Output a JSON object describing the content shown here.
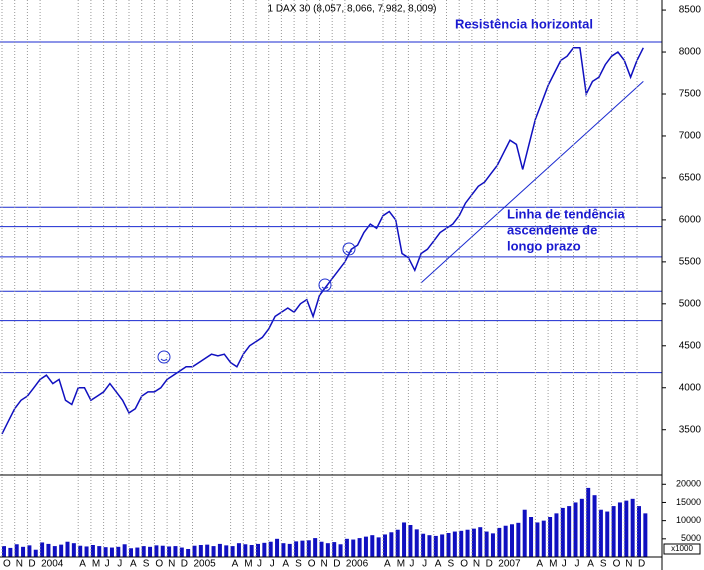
{
  "chart_data": {
    "type": "line",
    "title": "1 DAX 30 (8,057, 8,066, 7,982, 8,009)",
    "annotations": [
      "Resistência horizontal",
      "Linha de tendência",
      "ascendente de",
      "longo prazo"
    ],
    "categories": [
      "O",
      null,
      "N",
      null,
      "D",
      null,
      "2004",
      null,
      null,
      null,
      null,
      null,
      "A",
      null,
      "M",
      null,
      "J",
      null,
      "J",
      null,
      "A",
      null,
      "S",
      null,
      "O",
      null,
      "N",
      null,
      "D",
      null,
      "2005",
      null,
      null,
      null,
      null,
      null,
      "A",
      null,
      "M",
      null,
      "J",
      null,
      "J",
      null,
      "A",
      null,
      "S",
      null,
      "O",
      null,
      "N",
      null,
      "D",
      null,
      "2006",
      null,
      null,
      null,
      null,
      null,
      "A",
      null,
      "M",
      null,
      "J",
      null,
      "J",
      null,
      "A",
      null,
      "S",
      null,
      "O",
      null,
      "N",
      null,
      "D",
      null,
      "2007",
      null,
      null,
      null,
      null,
      null,
      "A",
      null,
      "M",
      null,
      "J",
      null,
      "J",
      null,
      "A",
      null,
      "S",
      null,
      "O",
      null,
      "N",
      null,
      "D",
      null
    ],
    "series": [
      {
        "color": "#1010c0",
        "values": [
          3450,
          3600,
          3750,
          3850,
          3900,
          4000,
          4100,
          4150,
          4050,
          4100,
          3850,
          3800,
          4000,
          4000,
          3850,
          3900,
          3950,
          4050,
          3950,
          3850,
          3700,
          3750,
          3900,
          3950,
          3950,
          4000,
          4100,
          4150,
          4200,
          4250,
          4250,
          4300,
          4350,
          4400,
          4380,
          4400,
          4300,
          4250,
          4400,
          4500,
          4550,
          4600,
          4700,
          4850,
          4900,
          4950,
          4900,
          5000,
          5050,
          4850,
          5100,
          5200,
          5300,
          5400,
          5500,
          5650,
          5700,
          5850,
          5950,
          5900,
          6050,
          6100,
          6000,
          5600,
          5550,
          5400,
          5600,
          5650,
          5750,
          5850,
          5900,
          5950,
          6050,
          6200,
          6300,
          6400,
          6450,
          6550,
          6650,
          6800,
          6950,
          6900,
          6600,
          6900,
          7200,
          7400,
          7600,
          7750,
          7900,
          7950,
          8050,
          8050,
          7500,
          7650,
          7700,
          7850,
          7950,
          8000,
          7900,
          7700,
          7900,
          8050
        ]
      },
      {
        "color": "#1010c0",
        "axis": "y2",
        "values": [
          3000,
          2500,
          3500,
          2800,
          3200,
          2000,
          4000,
          3600,
          3000,
          3400,
          4200,
          3800,
          3100,
          2900,
          3300,
          3000,
          2700,
          2600,
          2800,
          3500,
          2400,
          2600,
          3000,
          2800,
          3200,
          3100,
          2900,
          3000,
          2600,
          2200,
          3100,
          3300,
          3400,
          3000,
          3600,
          3200,
          3000,
          3800,
          3500,
          3300,
          3600,
          3900,
          4200,
          5000,
          3800,
          3600,
          4300,
          4500,
          4600,
          5200,
          4200,
          3800,
          4100,
          3500,
          5000,
          4800,
          5200,
          5600,
          6000,
          5400,
          6200,
          6800,
          7500,
          9500,
          8800,
          7600,
          6400,
          6000,
          5800,
          6200,
          6600,
          7000,
          7200,
          7500,
          7800,
          8200,
          7000,
          6500,
          8000,
          8600,
          9000,
          9400,
          13000,
          11000,
          9500,
          10000,
          11000,
          12000,
          13500,
          14000,
          15000,
          16000,
          19000,
          17000,
          13000,
          12500,
          14000,
          15000,
          15500,
          16000,
          14000,
          12000
        ]
      }
    ],
    "ylim": [
      3020,
      8620
    ],
    "yticks": [
      3500,
      4000,
      4500,
      5000,
      5500,
      6000,
      6500,
      7000,
      7500,
      8000,
      8500
    ],
    "y2lim": [
      0,
      22000
    ],
    "y2ticks": [
      5000,
      10000,
      15000,
      20000
    ],
    "y2_unit": "x1000",
    "reference_lines": [
      8120,
      6150,
      5920,
      5560,
      5150,
      4800,
      4180
    ],
    "trend_line": {
      "x": [
        66,
        101
      ],
      "values": [
        5250,
        7650
      ]
    },
    "grid": true
  }
}
